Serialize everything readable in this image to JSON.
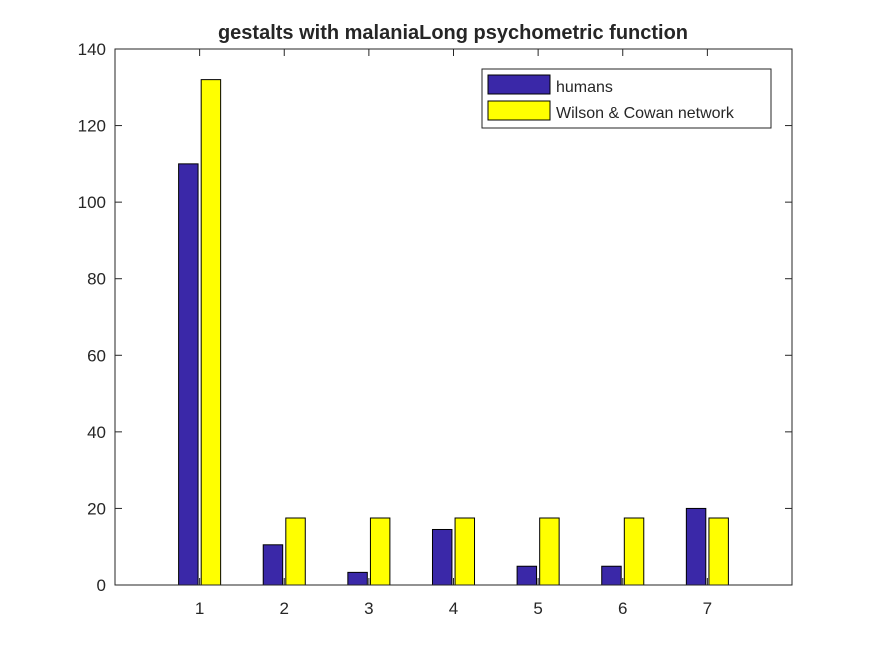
{
  "chart_data": {
    "type": "bar",
    "title": "gestalts with malaniaLong psychometric function",
    "xlabel": "",
    "ylabel": "",
    "categories": [
      "1",
      "2",
      "3",
      "4",
      "5",
      "6",
      "7"
    ],
    "series": [
      {
        "name": "humans",
        "color": "#3a28a8",
        "values": [
          110,
          10.5,
          3.3,
          14.5,
          4.9,
          4.9,
          20
        ]
      },
      {
        "name": "Wilson & Cowan network",
        "color": "#ffff00",
        "values": [
          132,
          17.5,
          17.5,
          17.5,
          17.5,
          17.5,
          17.5
        ]
      }
    ],
    "ylim": [
      0,
      140
    ],
    "xlim": [
      0,
      8
    ],
    "yticks": [
      "0",
      "20",
      "40",
      "60",
      "80",
      "100",
      "120",
      "140"
    ],
    "legend_position": "top-right",
    "grid": false
  }
}
